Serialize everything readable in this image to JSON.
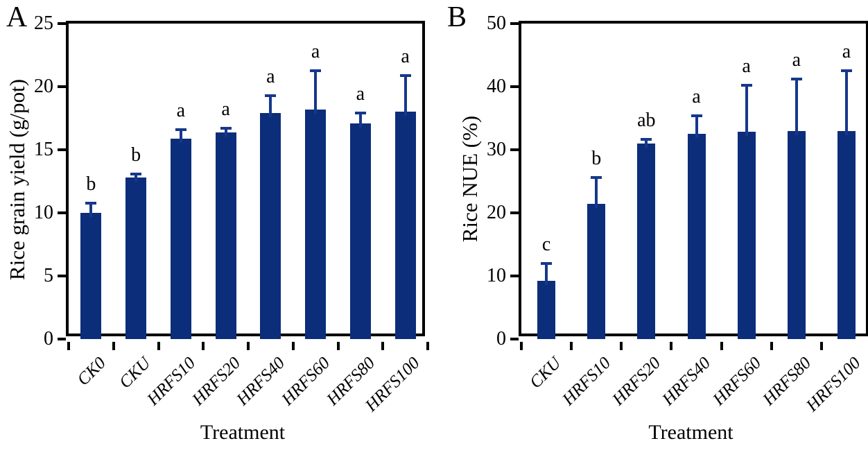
{
  "figure_type": "two-panel bar chart",
  "chart_data": [
    {
      "type": "bar",
      "panel_label": "A",
      "ylabel": "Rice grain yield (g/pot)",
      "xlabel": "Treatment",
      "ylim": [
        0,
        25
      ],
      "yticks": [
        0,
        5,
        10,
        15,
        20,
        25
      ],
      "categories": [
        "CK0",
        "CKU",
        "HRFS10",
        "HRFS20",
        "HRFS40",
        "HRFS60",
        "HRFS80",
        "HRFS100"
      ],
      "values": [
        10.0,
        12.8,
        15.9,
        16.4,
        17.9,
        18.2,
        17.1,
        18.0
      ],
      "errors_plus": [
        0.9,
        0.4,
        0.8,
        0.4,
        1.5,
        3.2,
        0.9,
        3.0
      ],
      "sig_letters": [
        "b",
        "b",
        "a",
        "a",
        "a",
        "a",
        "a",
        "a"
      ],
      "bar_color": "#0c2d7a",
      "error_color": "#16378c",
      "grid": false,
      "legend": "none"
    },
    {
      "type": "bar",
      "panel_label": "B",
      "ylabel": "Rice NUE (%)",
      "xlabel": "Treatment",
      "ylim": [
        0,
        50
      ],
      "yticks": [
        0,
        10,
        20,
        30,
        40,
        50
      ],
      "categories": [
        "CKU",
        "HRFS10",
        "HRFS20",
        "HRFS40",
        "HRFS60",
        "HRFS80",
        "HRFS100"
      ],
      "values": [
        9.2,
        21.4,
        31.0,
        32.5,
        32.9,
        33.0,
        33.0
      ],
      "errors_plus": [
        3.0,
        4.4,
        0.9,
        3.1,
        7.5,
        8.4,
        9.7
      ],
      "sig_letters": [
        "c",
        "b",
        "ab",
        "a",
        "a",
        "a",
        "a"
      ],
      "bar_color": "#0c2d7a",
      "error_color": "#16378c",
      "grid": false,
      "legend": "none"
    }
  ]
}
